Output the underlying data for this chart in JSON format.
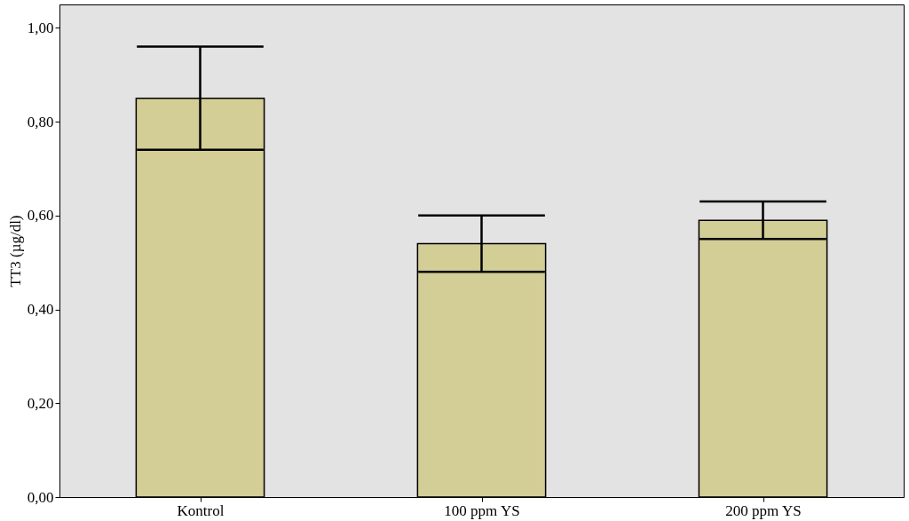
{
  "chart_data": {
    "type": "bar",
    "ylabel": "TT3 (µg/dl)",
    "categories": [
      "Kontrol",
      "100 ppm YS",
      "200 ppm YS"
    ],
    "values": [
      0.85,
      0.54,
      0.59
    ],
    "errors": [
      [
        0.74,
        0.96
      ],
      [
        0.48,
        0.6
      ],
      [
        0.55,
        0.63
      ]
    ],
    "color": "#d3cd96",
    "ylim": [
      0,
      1.05
    ],
    "yticks": [
      {
        "value": 0,
        "label": "0,00"
      },
      {
        "value": 0.2,
        "label": "0,20"
      },
      {
        "value": 0.4,
        "label": "0,40"
      },
      {
        "value": 0.6,
        "label": "0,60"
      },
      {
        "value": 0.8,
        "label": "0,80"
      },
      {
        "value": 1,
        "label": "1,00"
      }
    ],
    "grid": false
  }
}
